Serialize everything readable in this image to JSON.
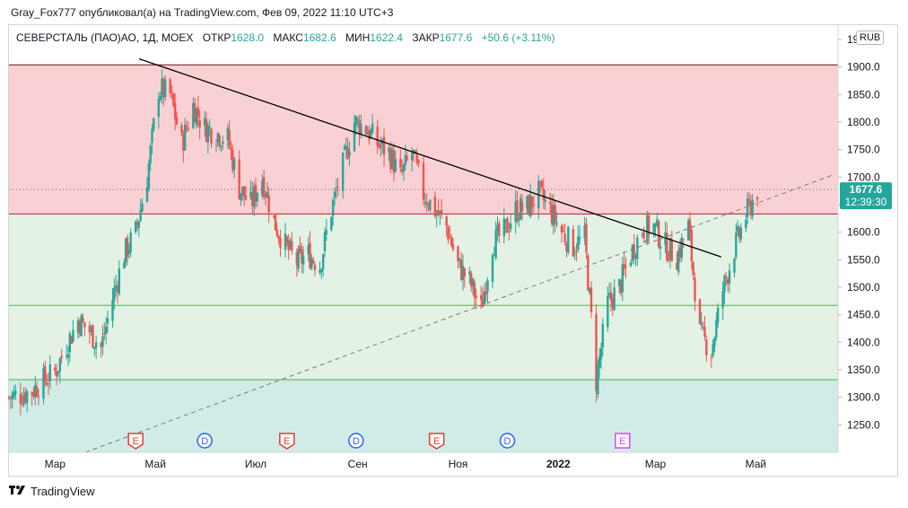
{
  "header": {
    "published": "Gray_Fox777 опубликовал(а) на TradingView.com, Фев 09, 2022 11:10 UTC+3"
  },
  "legend": {
    "symbol": "СЕВЕРСТАЛЬ (ПАО)АО, 1Д, MOEX",
    "open_label": "ОТКР",
    "open": "1628.0",
    "high_label": "МАКС",
    "high": "1682.6",
    "low_label": "МИН",
    "low": "1622.4",
    "close_label": "ЗАКР",
    "close": "1677.6",
    "change": "+50.6 (+3.11%)"
  },
  "currency": "RUB",
  "price_label": {
    "value": "1677.6",
    "countdown": "12:39:30"
  },
  "footer": {
    "brand": "TradingView"
  },
  "colors": {
    "up": "#26a69a",
    "down": "#ef5350",
    "zone_top": "#f9d1d4",
    "zone_mid": "#e3f2e4",
    "zone_low": "#d1ece6",
    "level_red": "#b71c1c",
    "level_green": "#4caf50",
    "trendline": "#000000",
    "support": "#787b86"
  },
  "chart_data": {
    "type": "candlestick",
    "ylim": [
      1200,
      1950
    ],
    "y_ticks": [
      "1950.0",
      "1900.0",
      "1850.0",
      "1800.0",
      "1750.0",
      "1700.0",
      "1650.0",
      "1600.0",
      "1550.0",
      "1500.0",
      "1450.0",
      "1400.0",
      "1350.0",
      "1300.0",
      "1250.0"
    ],
    "x_ticks": [
      "Мар",
      "Май",
      "Июл",
      "Сен",
      "Ноя",
      "2022",
      "Мар",
      "Май"
    ],
    "horizontal_levels": [
      1904,
      1633,
      1467,
      1332
    ],
    "zones": [
      {
        "from": 1633,
        "to": 1904,
        "color": "zone_top"
      },
      {
        "from": 1332,
        "to": 1633,
        "color": "zone_mid"
      },
      {
        "from": 1200,
        "to": 1332,
        "color": "zone_low"
      }
    ],
    "resistance_line": {
      "from": [
        "2021-04-21",
        1915
      ],
      "to": [
        "2022-04-10",
        1555
      ]
    },
    "support_line": {
      "from": [
        "2021-03-01",
        1200
      ],
      "to": [
        "2022-04-10",
        1705
      ]
    },
    "events": [
      {
        "date": "2021-04-19",
        "label": "E",
        "kind": "earnings"
      },
      {
        "date": "2021-05-31",
        "label": "D",
        "kind": "dividend"
      },
      {
        "date": "2021-07-20",
        "label": "E",
        "kind": "earnings"
      },
      {
        "date": "2021-08-31",
        "label": "D",
        "kind": "dividend"
      },
      {
        "date": "2021-10-19",
        "label": "E",
        "kind": "earnings"
      },
      {
        "date": "2021-12-01",
        "label": "D",
        "kind": "dividend"
      },
      {
        "date": "2022-02-09",
        "label": "E",
        "kind": "earnings-upcoming"
      }
    ],
    "last_price": 1677.6,
    "close_series": [
      [
        "2021-02-01",
        1300
      ],
      [
        "2021-02-08",
        1305
      ],
      [
        "2021-02-15",
        1312
      ],
      [
        "2021-02-22",
        1330
      ],
      [
        "2021-03-01",
        1345
      ],
      [
        "2021-03-08",
        1395
      ],
      [
        "2021-03-15",
        1440
      ],
      [
        "2021-03-22",
        1420
      ],
      [
        "2021-03-29",
        1390
      ],
      [
        "2021-04-05",
        1480
      ],
      [
        "2021-04-12",
        1560
      ],
      [
        "2021-04-19",
        1600
      ],
      [
        "2021-04-26",
        1700
      ],
      [
        "2021-05-03",
        1860
      ],
      [
        "2021-05-10",
        1850
      ],
      [
        "2021-05-17",
        1760
      ],
      [
        "2021-05-24",
        1830
      ],
      [
        "2021-05-31",
        1790
      ],
      [
        "2021-06-07",
        1780
      ],
      [
        "2021-06-14",
        1770
      ],
      [
        "2021-06-21",
        1680
      ],
      [
        "2021-06-28",
        1650
      ],
      [
        "2021-07-05",
        1700
      ],
      [
        "2021-07-12",
        1620
      ],
      [
        "2021-07-19",
        1575
      ],
      [
        "2021-07-26",
        1545
      ],
      [
        "2021-08-02",
        1560
      ],
      [
        "2021-08-09",
        1540
      ],
      [
        "2021-08-16",
        1640
      ],
      [
        "2021-08-23",
        1720
      ],
      [
        "2021-08-30",
        1800
      ],
      [
        "2021-09-06",
        1790
      ],
      [
        "2021-09-13",
        1760
      ],
      [
        "2021-09-20",
        1745
      ],
      [
        "2021-09-27",
        1700
      ],
      [
        "2021-10-04",
        1745
      ],
      [
        "2021-10-11",
        1670
      ],
      [
        "2021-10-18",
        1640
      ],
      [
        "2021-10-25",
        1610
      ],
      [
        "2021-11-01",
        1540
      ],
      [
        "2021-11-08",
        1510
      ],
      [
        "2021-11-15",
        1460
      ],
      [
        "2021-11-22",
        1580
      ],
      [
        "2021-11-29",
        1600
      ],
      [
        "2021-12-06",
        1640
      ],
      [
        "2021-12-13",
        1645
      ],
      [
        "2021-12-20",
        1670
      ],
      [
        "2021-12-27",
        1640
      ],
      [
        "2022-01-03",
        1600
      ],
      [
        "2022-01-10",
        1575
      ],
      [
        "2022-01-17",
        1590
      ],
      [
        "2022-01-24",
        1330
      ],
      [
        "2022-01-31",
        1470
      ],
      [
        "2022-02-07",
        1500
      ],
      [
        "2022-02-14",
        1560
      ],
      [
        "2022-02-21",
        1605
      ],
      [
        "2022-02-28",
        1610
      ],
      [
        "2022-03-07",
        1575
      ],
      [
        "2022-03-14",
        1555
      ],
      [
        "2022-03-21",
        1610
      ],
      [
        "2022-03-28",
        1415
      ],
      [
        "2022-04-04",
        1385
      ],
      [
        "2022-04-11",
        1495
      ],
      [
        "2022-04-18",
        1570
      ],
      [
        "2022-04-25",
        1630
      ],
      [
        "2022-05-02",
        1677.6
      ]
    ]
  }
}
